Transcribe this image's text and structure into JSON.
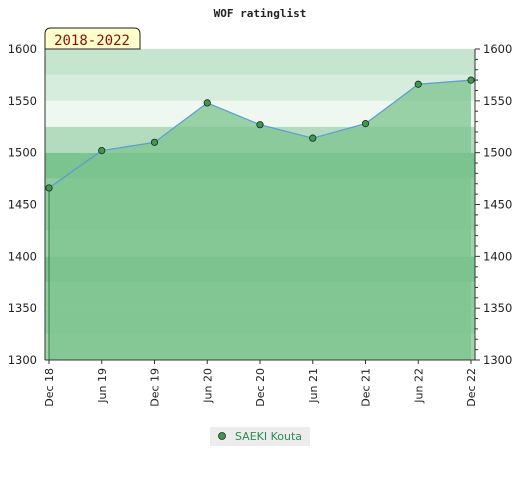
{
  "chart_data": {
    "type": "line",
    "title": "WOF ratinglist",
    "period_label": "2018-2022",
    "categories": [
      "Dec 18",
      "Jun 19",
      "Dec 19",
      "Jun 20",
      "Dec 20",
      "Jun 21",
      "Dec 21",
      "Jun 22",
      "Dec 22"
    ],
    "series": [
      {
        "name": "SAEKI Kouta",
        "values": [
          1466,
          1502,
          1510,
          1548,
          1527,
          1514,
          1528,
          1566,
          1570
        ]
      }
    ],
    "ylim": [
      1300,
      1600
    ],
    "yticks": [
      1300,
      1350,
      1400,
      1450,
      1500,
      1550,
      1600
    ],
    "xlabel": "",
    "ylabel": "",
    "grid": false,
    "legend_position": "bottom",
    "colors": {
      "line": "#5b9bd5",
      "fill": "#7cc48f",
      "marker": "#3c9a4e",
      "legend_text": "#2e8b57",
      "period_bg": "#ffffcc",
      "period_text": "#8a0f0f"
    }
  }
}
